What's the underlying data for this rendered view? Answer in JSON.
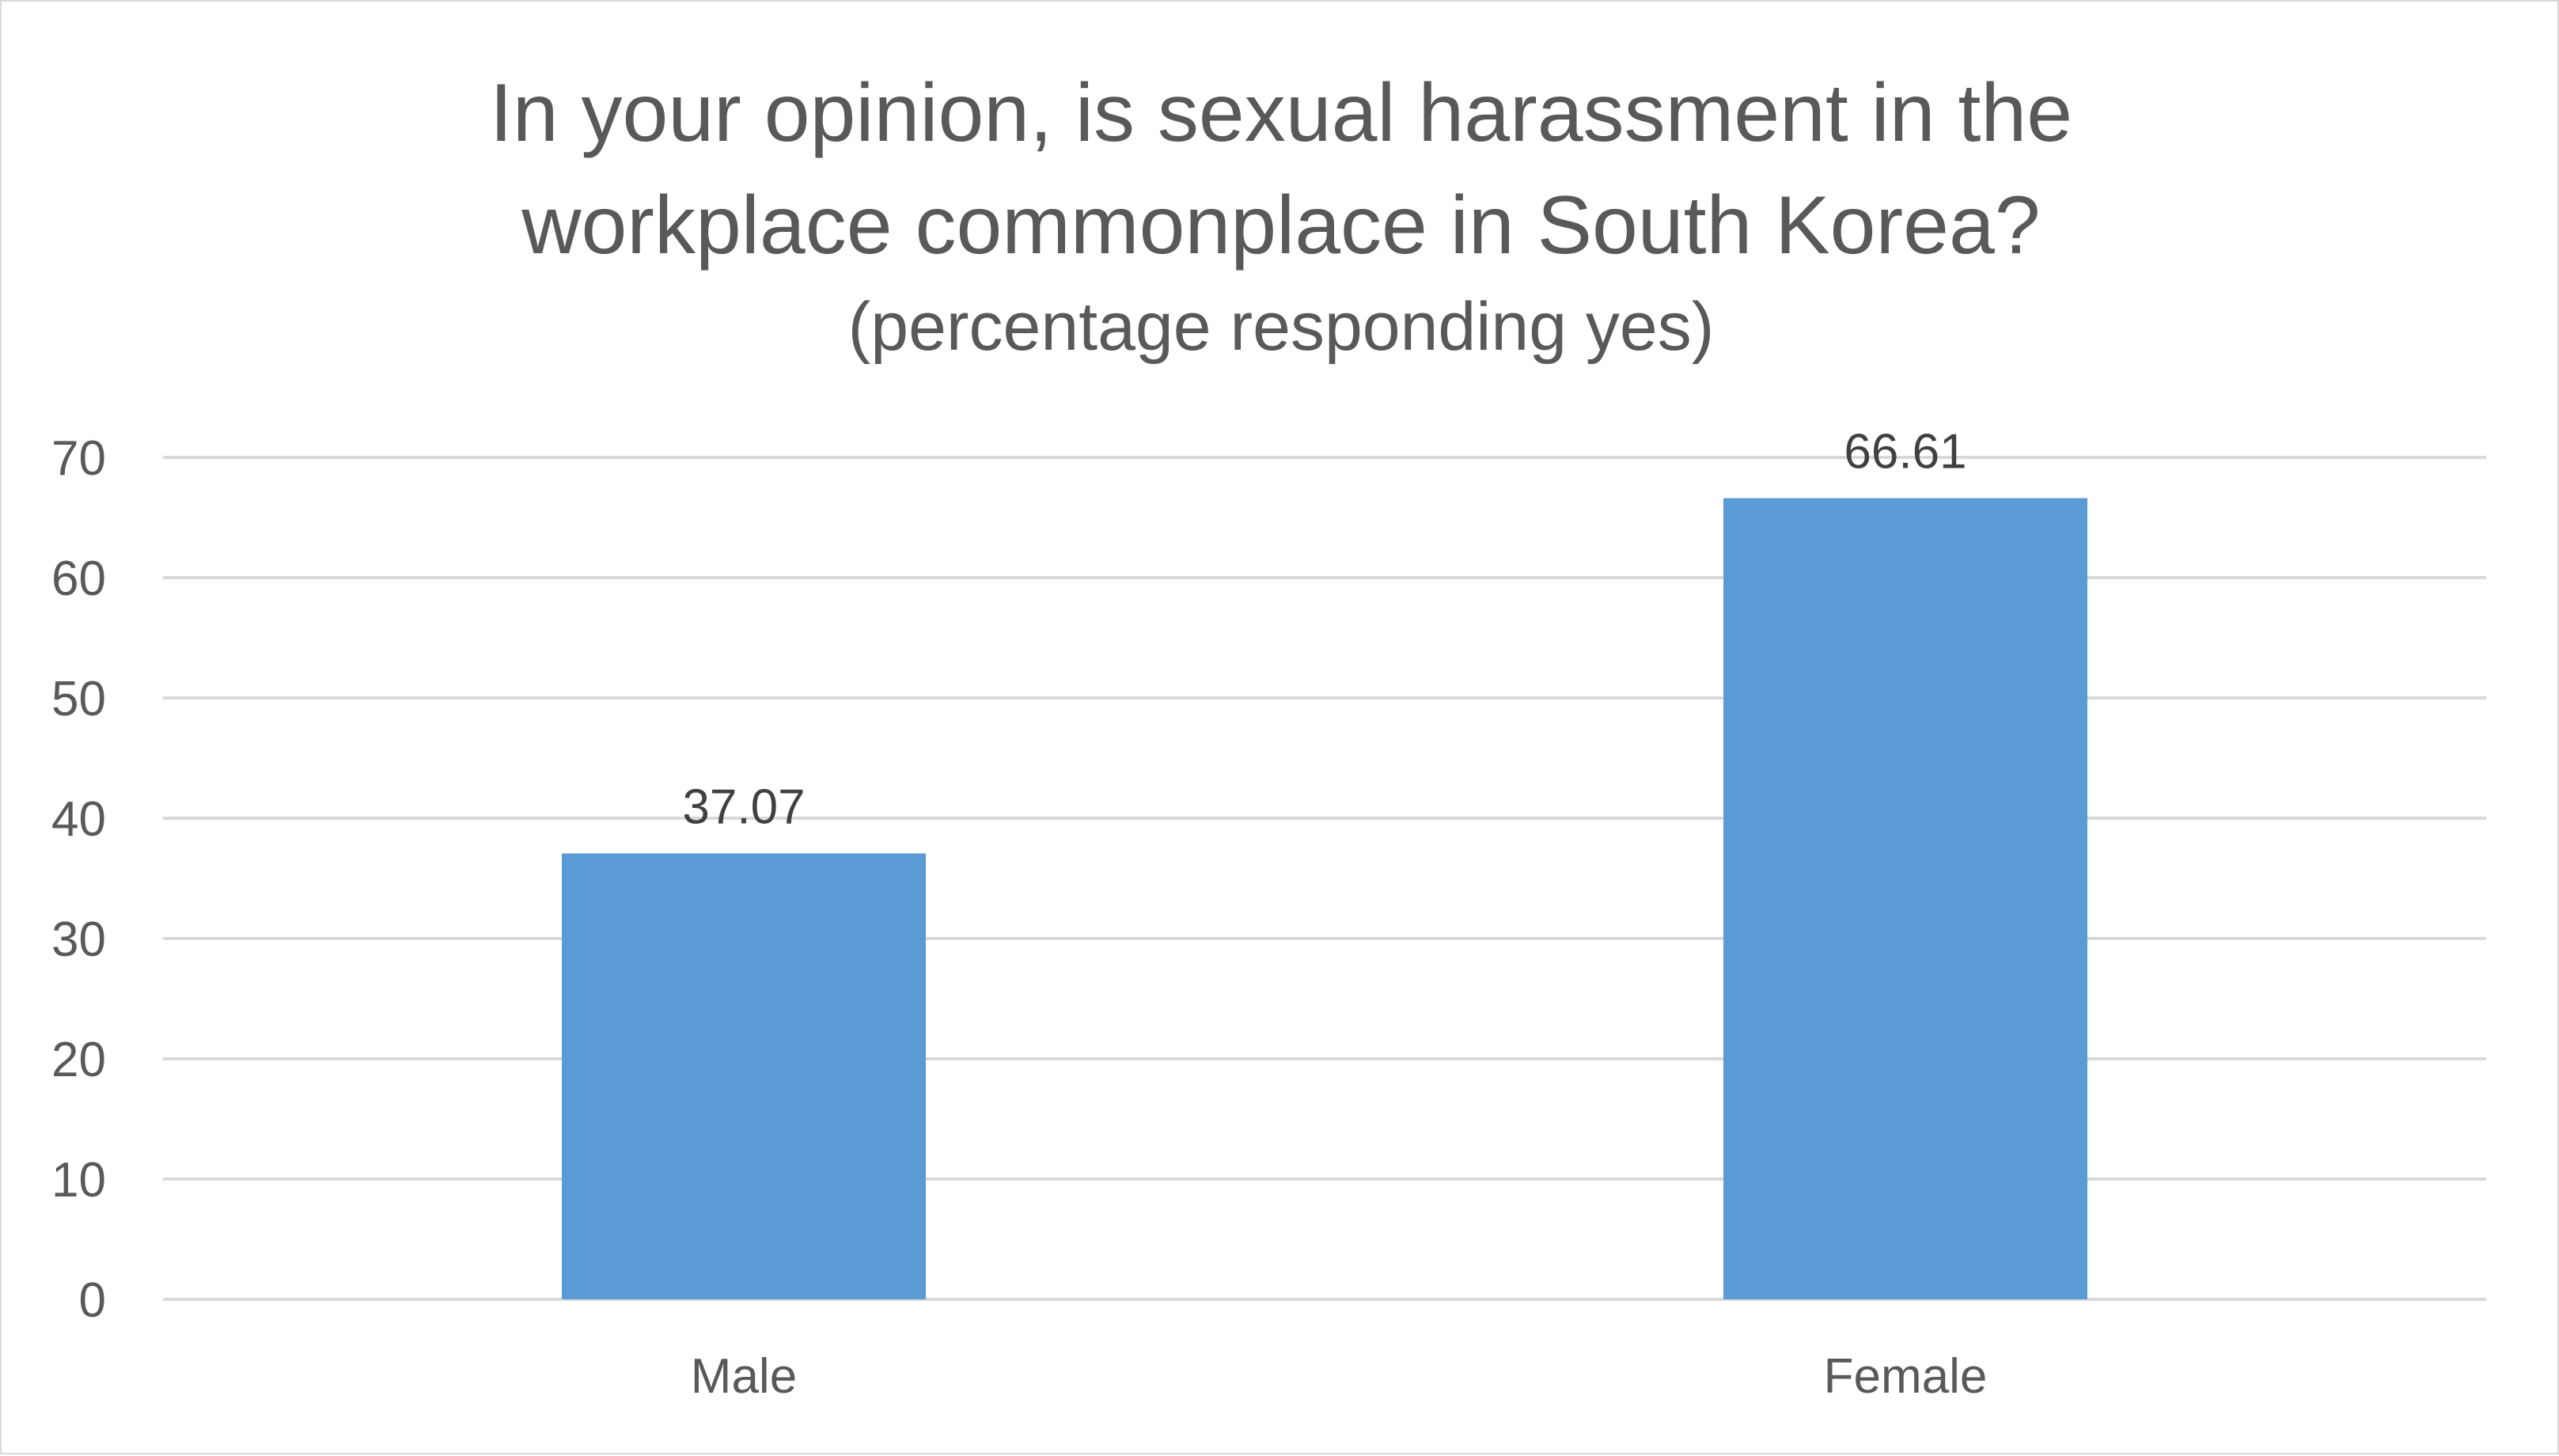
{
  "chart_data": {
    "type": "bar",
    "title_lines": [
      "In your opinion, is sexual harassment in the",
      "workplace commonplace in South Korea?"
    ],
    "subtitle": "(percentage responding yes)",
    "categories": [
      "Male",
      "Female"
    ],
    "values": [
      37.07,
      66.61
    ],
    "data_labels": [
      "37.07",
      "66.61"
    ],
    "ylim": [
      0,
      70
    ],
    "yticks": [
      0,
      10,
      20,
      30,
      40,
      50,
      60,
      70
    ],
    "xlabel": "",
    "ylabel": "",
    "grid": true,
    "legend": "none",
    "bar_color": "#5b9bd5",
    "grid_color": "#d9d9d9",
    "text_color": "#595959"
  }
}
